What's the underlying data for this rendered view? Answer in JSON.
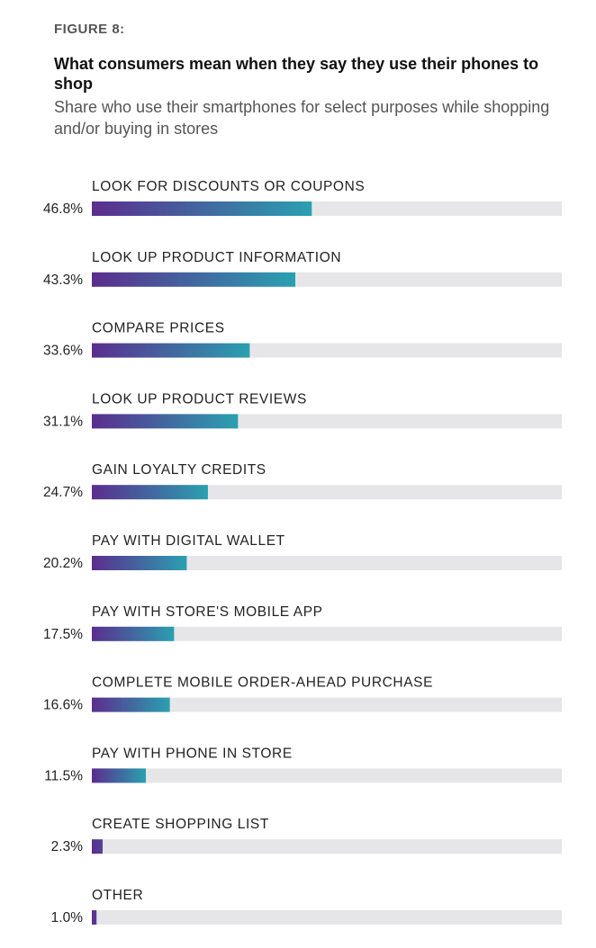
{
  "figure_label": "FIGURE 8:",
  "title": "What consumers mean when they say they use their phones to shop",
  "subtitle": "Share who use their smartphones for select purposes while shopping and/or buying in stores",
  "colors": {
    "bar_gradient_start": "#5b2d8e",
    "bar_gradient_end": "#2aa0b0",
    "track": "#e6e6e9"
  },
  "chart_data": {
    "type": "bar",
    "orientation": "horizontal",
    "unit": "%",
    "xlim": [
      0,
      100
    ],
    "categories": [
      "LOOK FOR DISCOUNTS OR COUPONS",
      "LOOK UP PRODUCT INFORMATION",
      "COMPARE PRICES",
      "LOOK UP PRODUCT REVIEWS",
      "GAIN LOYALTY CREDITS",
      "PAY WITH DIGITAL WALLET",
      "PAY WITH STORE'S MOBILE APP",
      "COMPLETE MOBILE ORDER-AHEAD PURCHASE",
      "PAY WITH PHONE IN STORE",
      "CREATE SHOPPING LIST",
      "OTHER"
    ],
    "values": [
      46.8,
      43.3,
      33.6,
      31.1,
      24.7,
      20.2,
      17.5,
      16.6,
      11.5,
      2.3,
      1.0
    ],
    "value_labels": [
      "46.8%",
      "43.3%",
      "33.6%",
      "31.1%",
      "24.7%",
      "20.2%",
      "17.5%",
      "16.6%",
      "11.5%",
      "2.3%",
      "1.0%"
    ]
  }
}
